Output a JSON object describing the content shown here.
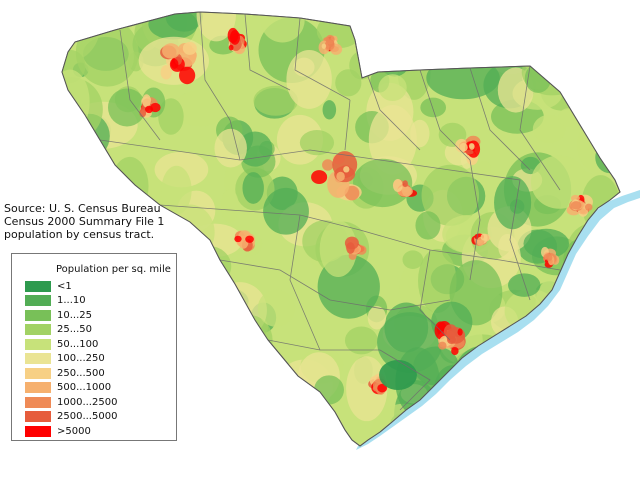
{
  "source_note": [
    "Source: U. S. Census Bureau",
    "Census 2000 Summary File 1",
    "population by census tract."
  ],
  "legend": {
    "title": "Population per sq. mile",
    "items": [
      {
        "label": "<1",
        "color": "#2e9a4e"
      },
      {
        "label": "1...10",
        "color": "#52ad55"
      },
      {
        "label": "10...25",
        "color": "#78c058"
      },
      {
        "label": "25...50",
        "color": "#a2d264"
      },
      {
        "label": "50...100",
        "color": "#c7e27a"
      },
      {
        "label": "100...250",
        "color": "#eae494"
      },
      {
        "label": "250...500",
        "color": "#f7d085"
      },
      {
        "label": "500...1000",
        "color": "#f6b06e"
      },
      {
        "label": "1000...2500",
        "color": "#ef8a56"
      },
      {
        "label": "2500...5000",
        "color": "#e65c3c"
      },
      {
        "label": ">5000",
        "color": "#ff0000"
      }
    ]
  },
  "colors": {
    "water": "#a8dff0",
    "county_border": "#6e6e6e"
  }
}
